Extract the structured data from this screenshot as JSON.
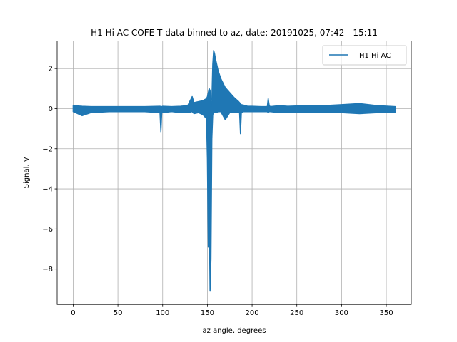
{
  "chart_data": {
    "type": "line",
    "title": "H1 Hi AC COFE T data binned to az, date: 20191025, 07:42 - 15:11",
    "xlabel": "az angle, degrees",
    "ylabel": "Signal, V",
    "xlim": [
      -17.9,
      377.9
    ],
    "ylim": [
      -9.76,
      3.37
    ],
    "grid": true,
    "legend_position": "top-right",
    "x_ticks": [
      0,
      50,
      100,
      150,
      200,
      250,
      300,
      350
    ],
    "y_ticks": [
      -8,
      -6,
      -4,
      -2,
      0,
      2
    ],
    "series": [
      {
        "name": "H1 Hi AC",
        "color": "#1f77b4",
        "envelope_x": [
          0,
          10,
          20,
          40,
          60,
          80,
          97,
          98,
          99,
          100,
          110,
          120,
          128,
          133,
          135,
          140,
          145,
          149,
          150,
          151,
          152,
          153,
          154,
          155,
          156,
          157,
          158,
          159,
          160,
          162,
          165,
          170,
          175,
          180,
          185,
          186,
          187,
          188,
          190,
          195,
          200,
          210,
          217,
          218,
          219,
          220,
          230,
          240,
          260,
          280,
          300,
          320,
          340,
          360
        ],
        "envelope_max": [
          0.15,
          0.12,
          0.1,
          0.1,
          0.1,
          0.1,
          0.12,
          0.1,
          0.1,
          0.12,
          0.1,
          0.12,
          0.15,
          0.6,
          0.3,
          0.35,
          0.4,
          0.5,
          0.6,
          0.8,
          1.0,
          0.9,
          0.1,
          0.4,
          2.2,
          2.9,
          2.75,
          2.5,
          2.3,
          1.9,
          1.5,
          1.05,
          0.8,
          0.55,
          0.35,
          0.3,
          0.25,
          0.2,
          0.18,
          0.12,
          0.12,
          0.1,
          0.1,
          0.5,
          0.2,
          0.1,
          0.15,
          0.12,
          0.15,
          0.15,
          0.2,
          0.25,
          0.15,
          0.1
        ],
        "envelope_min": [
          -0.15,
          -0.35,
          -0.2,
          -0.15,
          -0.15,
          -0.15,
          -0.2,
          -1.15,
          -0.2,
          -0.2,
          -0.15,
          -0.2,
          -0.2,
          -0.15,
          -0.25,
          -0.2,
          -0.3,
          -0.5,
          -2.5,
          -6.9,
          -4.7,
          -9.1,
          -7.5,
          -1.5,
          -0.3,
          -0.2,
          -0.15,
          -0.2,
          -0.2,
          -0.15,
          -0.15,
          -0.55,
          -0.2,
          -0.2,
          -0.2,
          -0.2,
          -1.25,
          -0.2,
          -0.15,
          -0.15,
          -0.15,
          -0.15,
          -0.15,
          -0.2,
          -0.15,
          -0.15,
          -0.2,
          -0.2,
          -0.2,
          -0.2,
          -0.2,
          -0.25,
          -0.2,
          -0.2
        ]
      }
    ]
  }
}
